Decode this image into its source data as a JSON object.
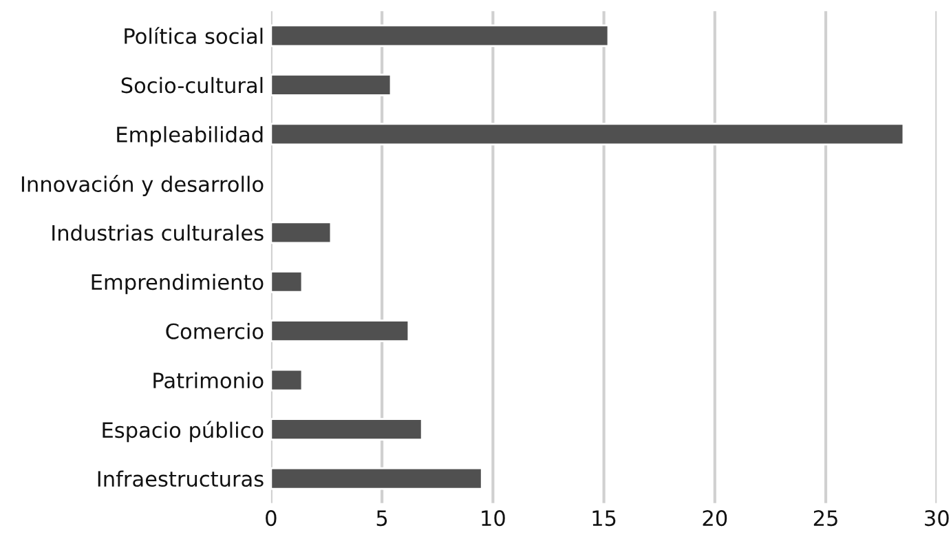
{
  "chart_data": {
    "type": "bar",
    "orientation": "horizontal",
    "categories": [
      "Política social",
      "Socio-cultural",
      "Empleabilidad",
      "Innovación y desarrollo",
      "Industrias culturales",
      "Emprendimiento",
      "Comercio",
      "Patrimonio",
      "Espacio público",
      "Infraestructuras"
    ],
    "values": [
      15.2,
      5.4,
      28.5,
      null,
      2.7,
      1.4,
      6.2,
      1.4,
      6.8,
      9.5
    ],
    "color": "#505050",
    "xlim": [
      0,
      30
    ],
    "xticks": [
      0,
      5,
      10,
      15,
      20,
      25,
      30
    ],
    "grid": "x"
  }
}
